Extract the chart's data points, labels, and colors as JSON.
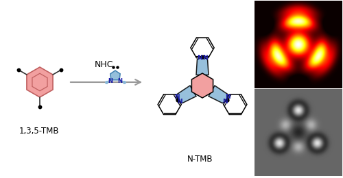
{
  "background_color": "#ffffff",
  "pink_color": "#f2a0a0",
  "blue_color": "#89b8d8",
  "arrow_color": "#999999",
  "text_color": "#000000",
  "n_color": "#1a1aaa",
  "label_1": "1,3,5-TMB",
  "label_2": "NHC",
  "label_3": "N-TMB",
  "label_fontsize": 8.5,
  "fig_width": 5.0,
  "fig_height": 2.6,
  "dpi": 100
}
